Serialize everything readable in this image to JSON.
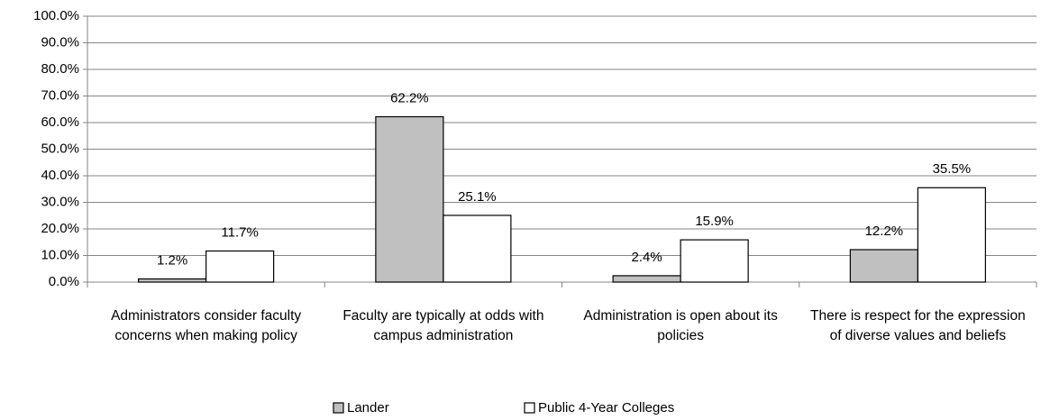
{
  "chart_data": {
    "type": "bar",
    "categories": [
      "Administrators consider faculty concerns when making policy",
      "Faculty are typically at odds with campus administration",
      "Administration is open about its policies",
      "There is respect for the expression of diverse values and beliefs"
    ],
    "series": [
      {
        "name": "Lander",
        "color": "#c0c0c0",
        "values": [
          1.2,
          62.2,
          2.4,
          12.2
        ],
        "value_labels": [
          "1.2%",
          "62.2%",
          "2.4%",
          "12.2%"
        ]
      },
      {
        "name": "Public 4-Year Colleges",
        "color": "#ffffff",
        "values": [
          11.7,
          25.1,
          15.9,
          35.5
        ],
        "value_labels": [
          "11.7%",
          "25.1%",
          "15.9%",
          "35.5%"
        ]
      }
    ],
    "ylim": [
      0,
      100
    ],
    "yticks": [
      {
        "value": 0,
        "label": "0.0%"
      },
      {
        "value": 10,
        "label": "10.0%"
      },
      {
        "value": 20,
        "label": "20.0%"
      },
      {
        "value": 30,
        "label": "30.0%"
      },
      {
        "value": 40,
        "label": "40.0%"
      },
      {
        "value": 50,
        "label": "50.0%"
      },
      {
        "value": 60,
        "label": "60.0%"
      },
      {
        "value": 70,
        "label": "70.0%"
      },
      {
        "value": 80,
        "label": "80.0%"
      },
      {
        "value": 90,
        "label": "90.0%"
      },
      {
        "value": 100,
        "label": "100.0%"
      }
    ],
    "grid": true,
    "legend": "bottom"
  }
}
